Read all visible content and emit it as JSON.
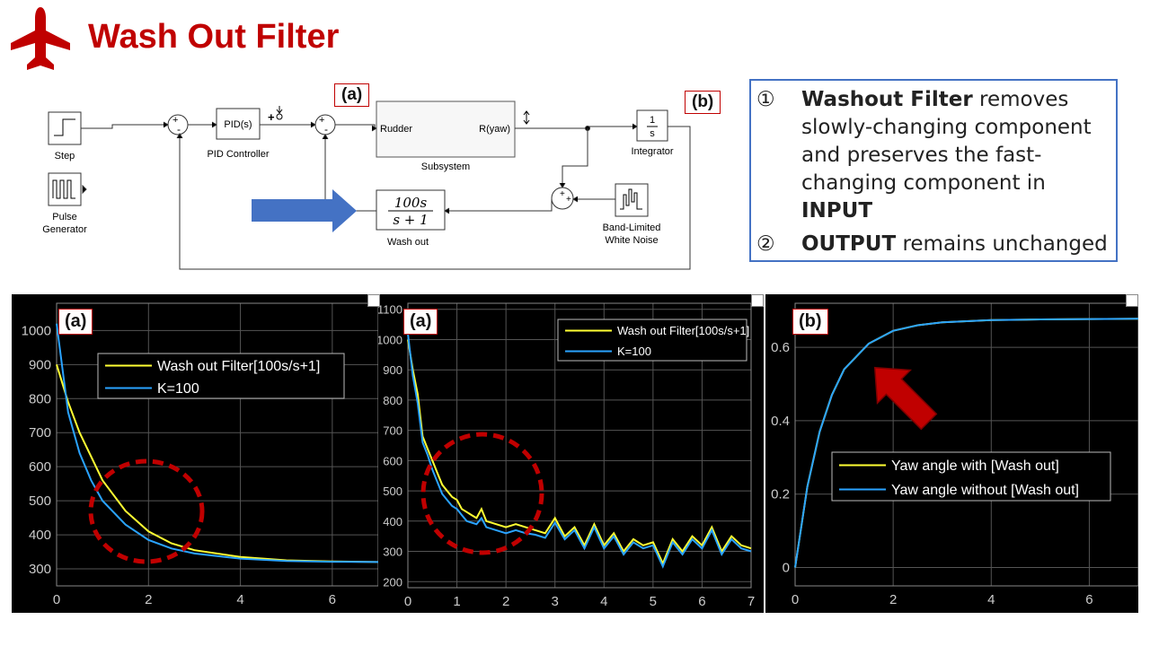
{
  "title": "Wash Out Filter",
  "colors": {
    "title": "#c00000",
    "note_border": "#4472c4",
    "yellow": "#ffff33",
    "blue": "#2aa3ff",
    "red_dash": "#c00000",
    "arrow_blue": "#4472c4"
  },
  "diagram": {
    "step_label": "Step",
    "pulse_label": "Pulse\nGenerator",
    "pid_block": "PID(s)",
    "pid_label": "PID Controller",
    "subsystem_in": "Rudder",
    "subsystem_out": "R(yaw)",
    "subsystem_label": "Subsystem",
    "integrator_num": "1",
    "integrator_den": "s",
    "integrator_label": "Integrator",
    "washout_num": "100s",
    "washout_den": "s + 1",
    "washout_label": "Wash out",
    "noise_label": "Band-Limited\nWhite Noise",
    "tag_a": "(a)",
    "tag_b": "(b)"
  },
  "notes": [
    {
      "num": "①",
      "bold1": "Washout Filter",
      "text": " removes slowly-changing component and preserves the fast-changing component in ",
      "bold2": "INPUT"
    },
    {
      "num": "②",
      "bold1": "OUTPUT",
      "text": " remains unchanged",
      "bold2": ""
    }
  ],
  "chart_data": [
    {
      "type": "line",
      "tag": "(a)",
      "xlim": [
        0,
        7
      ],
      "ylim": [
        250,
        1080
      ],
      "xticks": [
        0,
        2,
        4,
        6
      ],
      "yticks": [
        300,
        400,
        500,
        600,
        700,
        800,
        900,
        1000
      ],
      "grid": true,
      "legend_position": "upper-center",
      "series": [
        {
          "name": "Wash out Filter[100s/s+1]",
          "color": "yellow",
          "x": [
            0,
            0.25,
            0.5,
            0.75,
            1,
            1.5,
            2,
            2.5,
            3,
            4,
            5,
            6,
            7
          ],
          "y": [
            900,
            790,
            700,
            630,
            560,
            470,
            410,
            375,
            355,
            335,
            325,
            322,
            320
          ]
        },
        {
          "name": "K=100",
          "color": "blue",
          "x": [
            0,
            0.25,
            0.5,
            0.75,
            1,
            1.5,
            2,
            2.5,
            3,
            4,
            5,
            6,
            7
          ],
          "y": [
            1020,
            760,
            640,
            560,
            500,
            430,
            385,
            360,
            345,
            330,
            323,
            321,
            320
          ]
        }
      ]
    },
    {
      "type": "line",
      "tag": "(a)",
      "xlim": [
        0,
        7
      ],
      "ylim": [
        180,
        1120
      ],
      "xticks": [
        0,
        1,
        2,
        3,
        4,
        5,
        6,
        7
      ],
      "yticks": [
        200,
        300,
        400,
        500,
        600,
        700,
        800,
        900,
        1000,
        1100
      ],
      "grid": true,
      "legend_position": "top-right",
      "series": [
        {
          "name": "Wash out Filter[100s/s+1]",
          "color": "yellow",
          "x": [
            0,
            0.1,
            0.2,
            0.3,
            0.4,
            0.5,
            0.6,
            0.7,
            0.8,
            0.9,
            1.0,
            1.1,
            1.2,
            1.3,
            1.4,
            1.5,
            1.6,
            1.8,
            2.0,
            2.2,
            2.4,
            2.6,
            2.8,
            3.0,
            3.2,
            3.4,
            3.6,
            3.8,
            4.0,
            4.2,
            4.4,
            4.6,
            4.8,
            5.0,
            5.2,
            5.4,
            5.6,
            5.8,
            6.0,
            6.2,
            6.4,
            6.6,
            6.8,
            7.0
          ],
          "y": [
            1000,
            900,
            820,
            680,
            640,
            600,
            560,
            520,
            500,
            480,
            470,
            440,
            430,
            420,
            410,
            440,
            400,
            390,
            380,
            390,
            380,
            370,
            360,
            410,
            350,
            380,
            320,
            390,
            320,
            360,
            300,
            340,
            320,
            330,
            260,
            340,
            300,
            350,
            320,
            380,
            300,
            350,
            320,
            310
          ]
        },
        {
          "name": "K=100",
          "color": "blue",
          "x": [
            0,
            0.1,
            0.2,
            0.3,
            0.4,
            0.5,
            0.6,
            0.7,
            0.8,
            0.9,
            1.0,
            1.1,
            1.2,
            1.3,
            1.4,
            1.5,
            1.6,
            1.8,
            2.0,
            2.2,
            2.4,
            2.6,
            2.8,
            3.0,
            3.2,
            3.4,
            3.6,
            3.8,
            4.0,
            4.2,
            4.4,
            4.6,
            4.8,
            5.0,
            5.2,
            5.4,
            5.6,
            5.8,
            6.0,
            6.2,
            6.4,
            6.6,
            6.8,
            7.0
          ],
          "y": [
            1020,
            880,
            790,
            660,
            620,
            570,
            530,
            490,
            470,
            450,
            440,
            420,
            400,
            395,
            390,
            410,
            380,
            370,
            360,
            370,
            360,
            355,
            345,
            395,
            340,
            370,
            310,
            380,
            310,
            350,
            290,
            330,
            310,
            320,
            250,
            330,
            290,
            340,
            310,
            370,
            290,
            340,
            310,
            300
          ]
        }
      ]
    },
    {
      "type": "line",
      "tag": "(b)",
      "xlim": [
        0,
        7
      ],
      "ylim": [
        -0.05,
        0.72
      ],
      "xticks": [
        0,
        2,
        4,
        6
      ],
      "yticks": [
        0,
        0.2,
        0.4,
        0.6
      ],
      "grid": true,
      "legend_position": "lower-right",
      "series": [
        {
          "name": "Yaw angle with [Wash out]",
          "color": "yellow",
          "x": [
            0,
            0.25,
            0.5,
            0.75,
            1,
            1.5,
            2,
            2.5,
            3,
            4,
            5,
            6,
            7
          ],
          "y": [
            0,
            0.22,
            0.37,
            0.47,
            0.54,
            0.61,
            0.645,
            0.66,
            0.668,
            0.674,
            0.676,
            0.677,
            0.678
          ]
        },
        {
          "name": "Yaw angle without [Wash out]",
          "color": "blue",
          "x": [
            0,
            0.25,
            0.5,
            0.75,
            1,
            1.5,
            2,
            2.5,
            3,
            4,
            5,
            6,
            7
          ],
          "y": [
            0,
            0.22,
            0.37,
            0.47,
            0.54,
            0.61,
            0.645,
            0.66,
            0.668,
            0.674,
            0.676,
            0.677,
            0.678
          ]
        }
      ]
    }
  ]
}
